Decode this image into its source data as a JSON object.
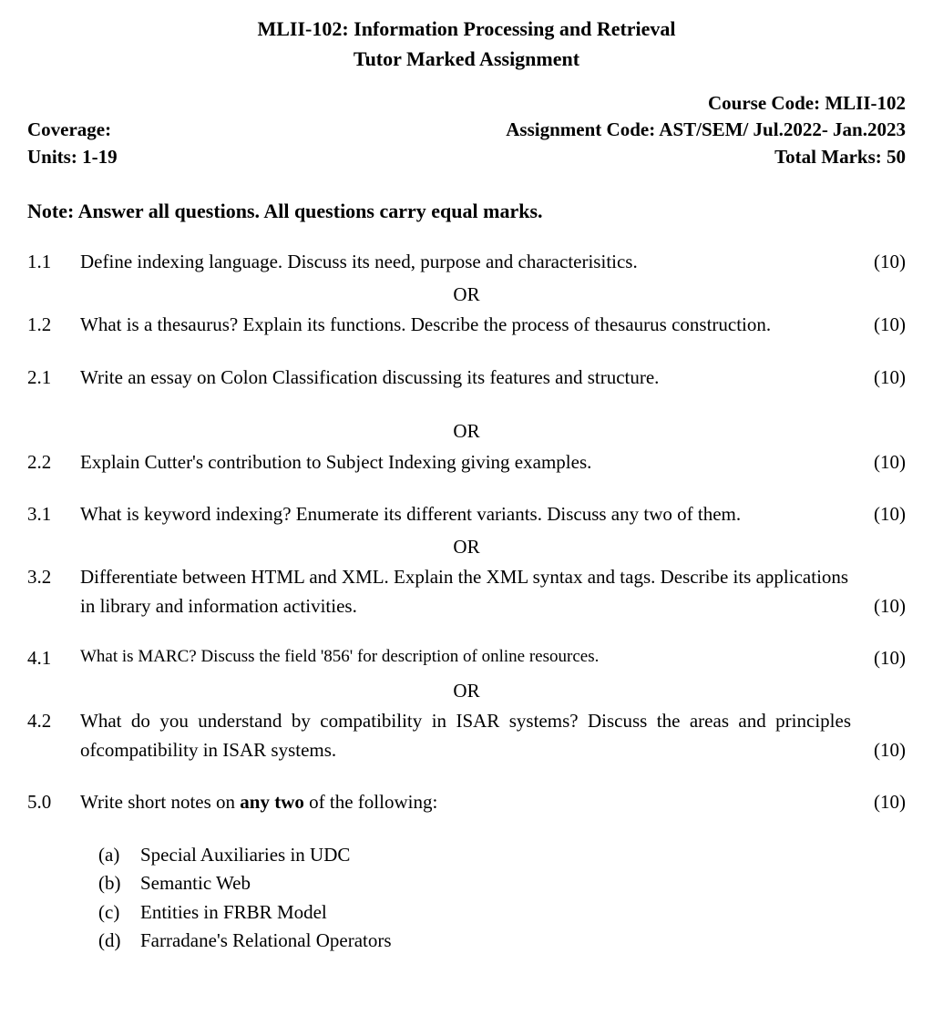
{
  "header": {
    "title": "MLII-102: Information Processing and Retrieval",
    "subtitle": "Tutor Marked Assignment",
    "course_code_label": "Course Code: MLII-102",
    "coverage_label": "Coverage:",
    "assignment_code": "Assignment Code: AST/SEM/ Jul.2022- Jan.2023",
    "units_label": "Units:  1-19",
    "total_marks": "Total Marks: 50"
  },
  "note": "Note: Answer all questions. All questions carry equal marks.",
  "or_text": "OR",
  "questions": {
    "q1_1": {
      "num": "1.1",
      "text": "Define indexing language.  Discuss its need, purpose and characterisitics.",
      "marks": "(10)"
    },
    "q1_2": {
      "num": "1.2",
      "text": "What is a thesaurus? Explain its functions. Describe the process of thesaurus construction.",
      "marks": "(10)"
    },
    "q2_1": {
      "num": "2.1",
      "text": "Write an essay on Colon Classification discussing its features and structure.",
      "marks": "(10)"
    },
    "q2_2": {
      "num": "2.2",
      "text": "Explain Cutter's contribution to Subject Indexing giving examples.",
      "marks": "(10)"
    },
    "q3_1": {
      "num": "3.1",
      "text": "What is keyword indexing? Enumerate its different variants. Discuss any two of them.",
      "marks": "(10)"
    },
    "q3_2": {
      "num": "3.2",
      "text": "Differentiate  between  HTML  and  XML. Explain the XML syntax and tags. Describe its applications in library and information activities.",
      "marks": "(10)"
    },
    "q4_1": {
      "num": "4.1",
      "text": "What is MARC? Discuss the field '856' for description of online resources.",
      "marks": "(10)"
    },
    "q4_2": {
      "num": "4.2",
      "text": "What  do  you  understand  by  compatibility  in  ISAR  systems?  Discuss  the  areas and principles ofcompatibility in ISAR systems.",
      "marks": "(10)"
    },
    "q5_0": {
      "num": "5.0",
      "text_before": "Write short notes on ",
      "text_bold": "any two",
      "text_after": " of the following:",
      "marks": "(10)",
      "items": [
        {
          "label": "(a)",
          "text": "Special Auxiliaries in UDC"
        },
        {
          "label": "(b)",
          "text": "Semantic Web"
        },
        {
          "label": "(c)",
          "text": "Entities in FRBR Model"
        },
        {
          "label": "(d)",
          "text": "Farradane's Relational Operators"
        }
      ]
    }
  },
  "styling": {
    "background_color": "#ffffff",
    "text_color": "#000000",
    "font_family": "Times New Roman",
    "base_font_size": 21,
    "title_font_size": 22,
    "smaller_font_size": 19
  }
}
